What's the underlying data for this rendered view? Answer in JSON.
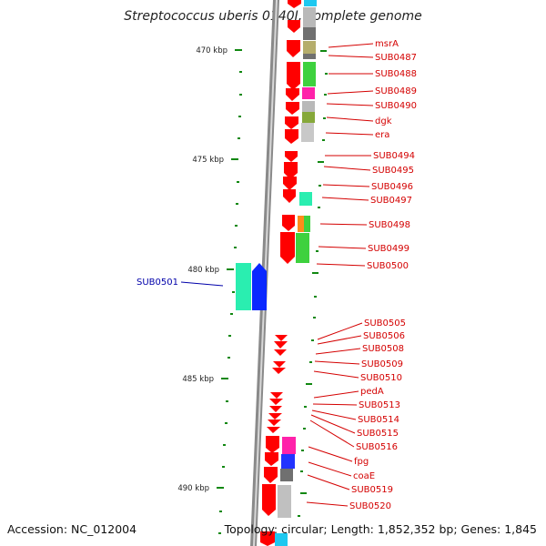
{
  "title": "Streptococcus uberis 0140J, complete genome",
  "accession": "Accession: NC_012004",
  "topology": "Topology: circular; Length: 1,852,352 bp; Genes: 1,845",
  "colors": {
    "forward_gene": "#ff0000",
    "forward_label": "#d40000",
    "reverse_label": "#0000aa",
    "kbp_tick": "#118811",
    "backbone": "#888888"
  },
  "kbp_ticks": [
    "470 kbp",
    "475 kbp",
    "480 kbp",
    "485 kbp",
    "490 kbp"
  ],
  "forward_labels": [
    "msrA",
    "SUB0487",
    "SUB0488",
    "SUB0489",
    "SUB0490",
    "dgk",
    "era",
    "SUB0494",
    "SUB0495",
    "SUB0496",
    "SUB0497",
    "SUB0498",
    "SUB0499",
    "SUB0500",
    "SUB0505",
    "SUB0506",
    "SUB0508",
    "SUB0509",
    "SUB0510",
    "pedA",
    "SUB0513",
    "SUB0514",
    "SUB0515",
    "SUB0516",
    "fpg",
    "coaE",
    "SUB0519",
    "SUB0520"
  ],
  "reverse_labels": [
    "SUB0501"
  ]
}
